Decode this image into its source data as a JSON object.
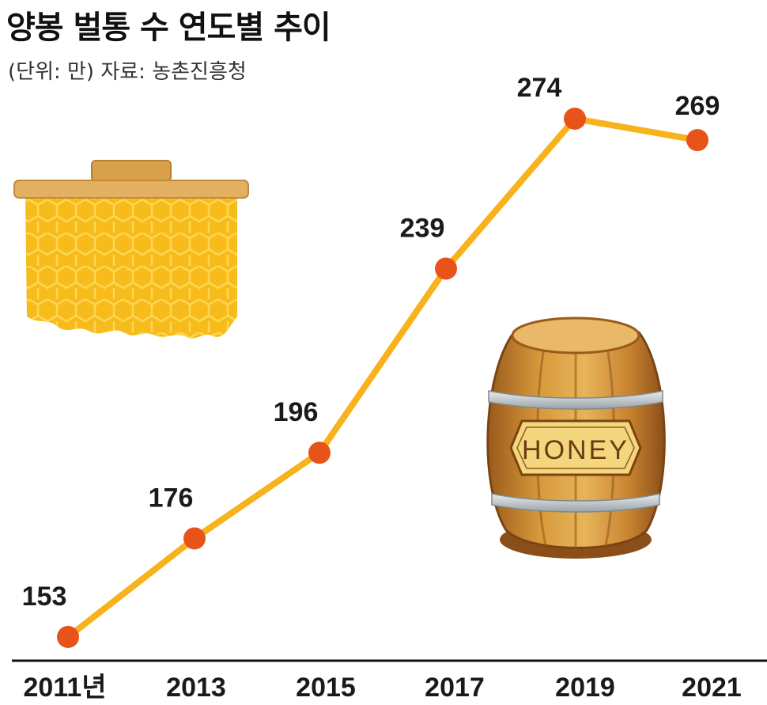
{
  "header": {
    "title": "양봉 벌통 수 연도별 추이",
    "subtitle": "(단위: 만) 자료: 농촌진흥청"
  },
  "illustrations": {
    "barrel_label": "HONEY"
  },
  "colors": {
    "line": "#f7b21c",
    "marker": "#e8531a",
    "axis": "#111111"
  },
  "chart_data": {
    "type": "line",
    "title": "양봉 벌통 수 연도별 추이",
    "subtitle": "(단위: 만) 자료: 농촌진흥청",
    "categories": [
      "2011년",
      "2013",
      "2015",
      "2017",
      "2019",
      "2021"
    ],
    "x": [
      2011,
      2013,
      2015,
      2017,
      2019,
      2021
    ],
    "series": [
      {
        "values": [
          153,
          176,
          196,
          239,
          274,
          269
        ]
      }
    ],
    "data_labels": [
      "153",
      "176",
      "196",
      "239",
      "274",
      "269"
    ],
    "ylim": [
      150,
      275
    ],
    "grid": false,
    "legend": "none"
  }
}
